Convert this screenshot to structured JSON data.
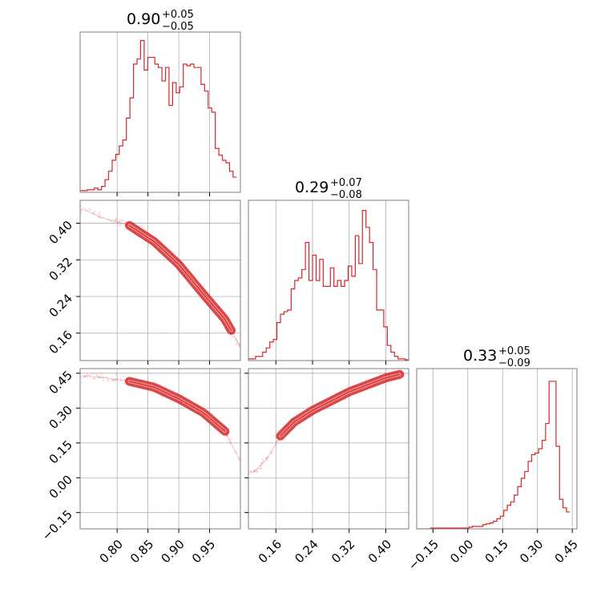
{
  "chart_data": {
    "type": "corner",
    "color": "#d62728",
    "grid": true,
    "panels": [
      {
        "kind": "hist",
        "row": 0,
        "col": 0,
        "title": {
          "median": "0.90",
          "plus": "+0.05",
          "minus": "−0.05"
        },
        "x_range": [
          0.74,
          1.0
        ],
        "y_range": [
          0,
          190
        ],
        "bin_start": 0.74,
        "bin_width": 0.00577,
        "counts": [
          2,
          2,
          3,
          3,
          5,
          3,
          7,
          15,
          25,
          38,
          45,
          55,
          62,
          88,
          112,
          152,
          158,
          180,
          145,
          160,
          160,
          152,
          148,
          132,
          148,
          103,
          130,
          118,
          125,
          152,
          150,
          152,
          148,
          148,
          128,
          120,
          100,
          95,
          52,
          44,
          38,
          35,
          25,
          18
        ]
      },
      {
        "kind": "scatter",
        "row": 1,
        "col": 0,
        "x_range": [
          0.74,
          1.0
        ],
        "y_range": [
          0.1,
          0.45
        ],
        "curve": [
          [
            0.745,
            0.43
          ],
          [
            0.78,
            0.41
          ],
          [
            0.82,
            0.395
          ],
          [
            0.86,
            0.36
          ],
          [
            0.9,
            0.31
          ],
          [
            0.94,
            0.245
          ],
          [
            0.975,
            0.19
          ],
          [
            1.0,
            0.13
          ]
        ],
        "core_range": [
          0.82,
          0.985
        ]
      },
      {
        "kind": "hist",
        "row": 1,
        "col": 1,
        "title": {
          "median": "0.29",
          "plus": "+0.07",
          "minus": "−0.08"
        },
        "x_range": [
          0.1,
          0.45
        ],
        "y_range": [
          0,
          190
        ],
        "bin_start": 0.1,
        "bin_width": 0.00778,
        "counts": [
          2,
          2,
          5,
          5,
          10,
          15,
          22,
          25,
          45,
          55,
          58,
          60,
          85,
          95,
          98,
          108,
          140,
          95,
          125,
          95,
          120,
          88,
          88,
          110,
          88,
          95,
          88,
          95,
          112,
          100,
          148,
          115,
          178,
          158,
          140,
          108,
          60,
          60,
          40,
          18,
          10,
          5,
          2,
          2,
          1
        ]
      },
      {
        "kind": "scatter",
        "row": 2,
        "col": 0,
        "x_range": [
          0.74,
          1.0
        ],
        "y_range": [
          -0.22,
          0.47
        ],
        "curve": [
          [
            0.745,
            0.44
          ],
          [
            0.78,
            0.43
          ],
          [
            0.82,
            0.415
          ],
          [
            0.86,
            0.39
          ],
          [
            0.9,
            0.34
          ],
          [
            0.94,
            0.28
          ],
          [
            0.975,
            0.2
          ],
          [
            1.0,
            0.07
          ]
        ],
        "core_range": [
          0.82,
          0.975
        ]
      },
      {
        "kind": "scatter",
        "row": 2,
        "col": 1,
        "x_range": [
          0.1,
          0.45
        ],
        "y_range": [
          -0.22,
          0.47
        ],
        "curve": [
          [
            0.11,
            0.02
          ],
          [
            0.14,
            0.08
          ],
          [
            0.17,
            0.18
          ],
          [
            0.2,
            0.24
          ],
          [
            0.24,
            0.29
          ],
          [
            0.28,
            0.33
          ],
          [
            0.32,
            0.37
          ],
          [
            0.36,
            0.4
          ],
          [
            0.4,
            0.43
          ],
          [
            0.44,
            0.45
          ]
        ],
        "core_range": [
          0.17,
          0.43
        ]
      },
      {
        "kind": "hist",
        "row": 2,
        "col": 2,
        "title": {
          "median": "0.33",
          "plus": "+0.05",
          "minus": "−0.09"
        },
        "x_range": [
          -0.22,
          0.47
        ],
        "y_range": [
          0,
          190
        ],
        "bin_start": -0.22,
        "bin_width": 0.015,
        "counts": [
          0,
          0,
          0,
          0,
          1,
          1,
          1,
          1,
          1,
          1,
          1,
          1,
          1,
          1,
          1,
          2,
          3,
          3,
          3,
          5,
          6,
          7,
          9,
          12,
          15,
          22,
          28,
          32,
          40,
          50,
          60,
          68,
          80,
          88,
          90,
          95,
          105,
          125,
          175,
          175,
          98,
          35,
          25,
          20
        ]
      }
    ],
    "axes": {
      "x_col0_ticks": [
        "0.80",
        "0.85",
        "0.90",
        "0.95"
      ],
      "x_col0_values": [
        0.8,
        0.85,
        0.9,
        0.95
      ],
      "x_col1_ticks": [
        "0.16",
        "0.24",
        "0.32",
        "0.40"
      ],
      "x_col1_values": [
        0.16,
        0.24,
        0.32,
        0.4
      ],
      "x_col2_ticks": [
        "−0.15",
        "0.00",
        "0.15",
        "0.30",
        "0.45"
      ],
      "x_col2_values": [
        -0.15,
        0.0,
        0.15,
        0.3,
        0.45
      ],
      "y_row1_ticks": [
        "0.40",
        "0.32",
        "0.24",
        "0.16"
      ],
      "y_row1_values": [
        0.4,
        0.32,
        0.24,
        0.16
      ],
      "y_row2_ticks": [
        "0.45",
        "0.30",
        "0.15",
        "0.00",
        "−0.15"
      ],
      "y_row2_values": [
        0.45,
        0.3,
        0.15,
        0.0,
        -0.15
      ]
    }
  }
}
